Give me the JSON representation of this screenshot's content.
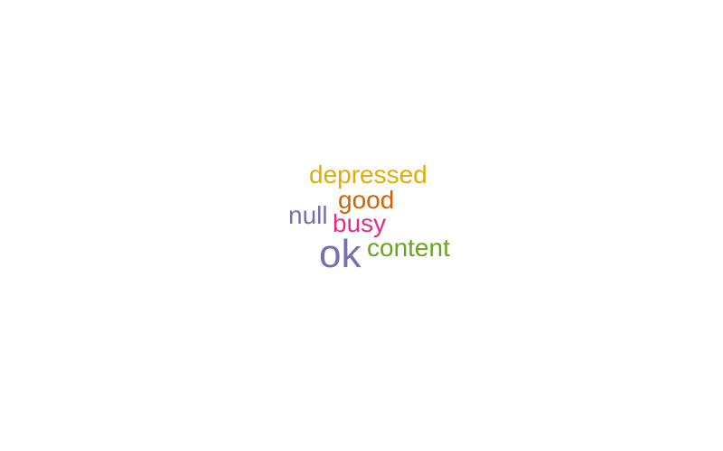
{
  "word_cloud": {
    "words": [
      {
        "text": "depressed",
        "color": "#e6ab02"
      },
      {
        "text": "good",
        "color": "#d95f02"
      },
      {
        "text": "null",
        "color": "#7570b3"
      },
      {
        "text": "busy",
        "color": "#e7298a"
      },
      {
        "text": "ok",
        "color": "#7570b3"
      },
      {
        "text": "content",
        "color": "#66a61e"
      }
    ]
  }
}
